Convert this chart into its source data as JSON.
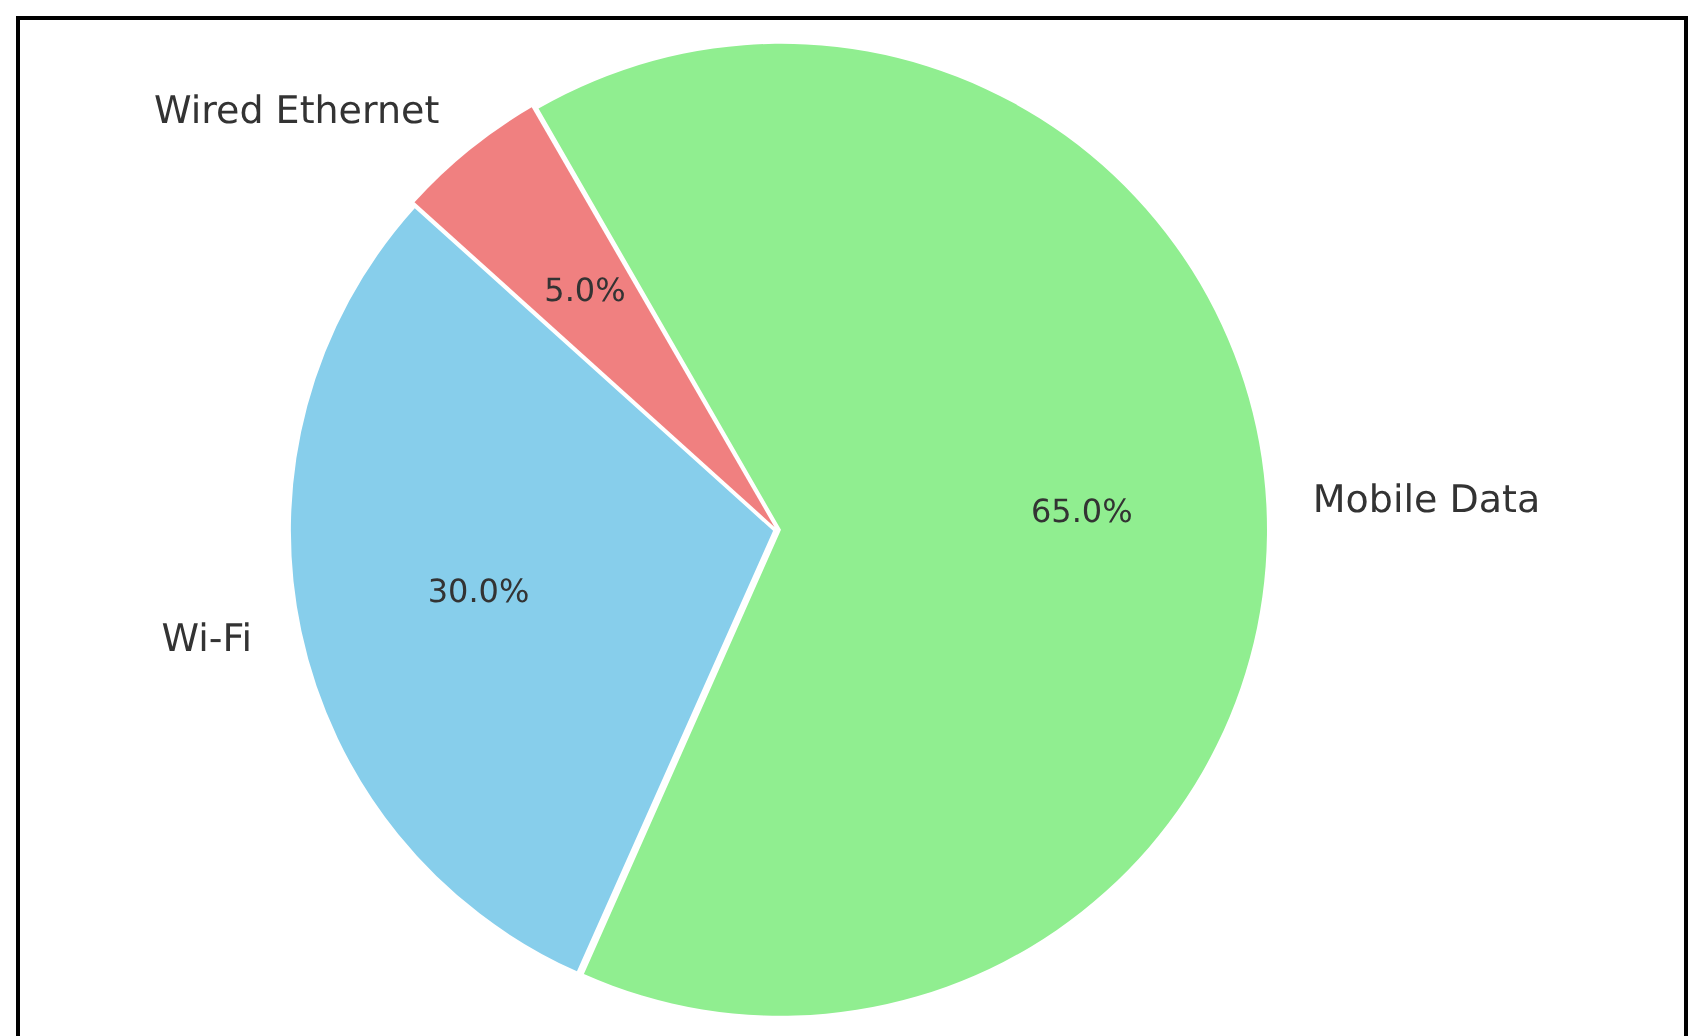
{
  "chart_data": {
    "type": "pie",
    "categories": [
      "Mobile Data",
      "Wi-Fi",
      "Wired Ethernet"
    ],
    "values": [
      65,
      30,
      5
    ],
    "colors": [
      "#90ee90",
      "#87ceeb",
      "#f08080"
    ],
    "value_labels": [
      "65.0%",
      "30.0%",
      "5.0%"
    ]
  }
}
